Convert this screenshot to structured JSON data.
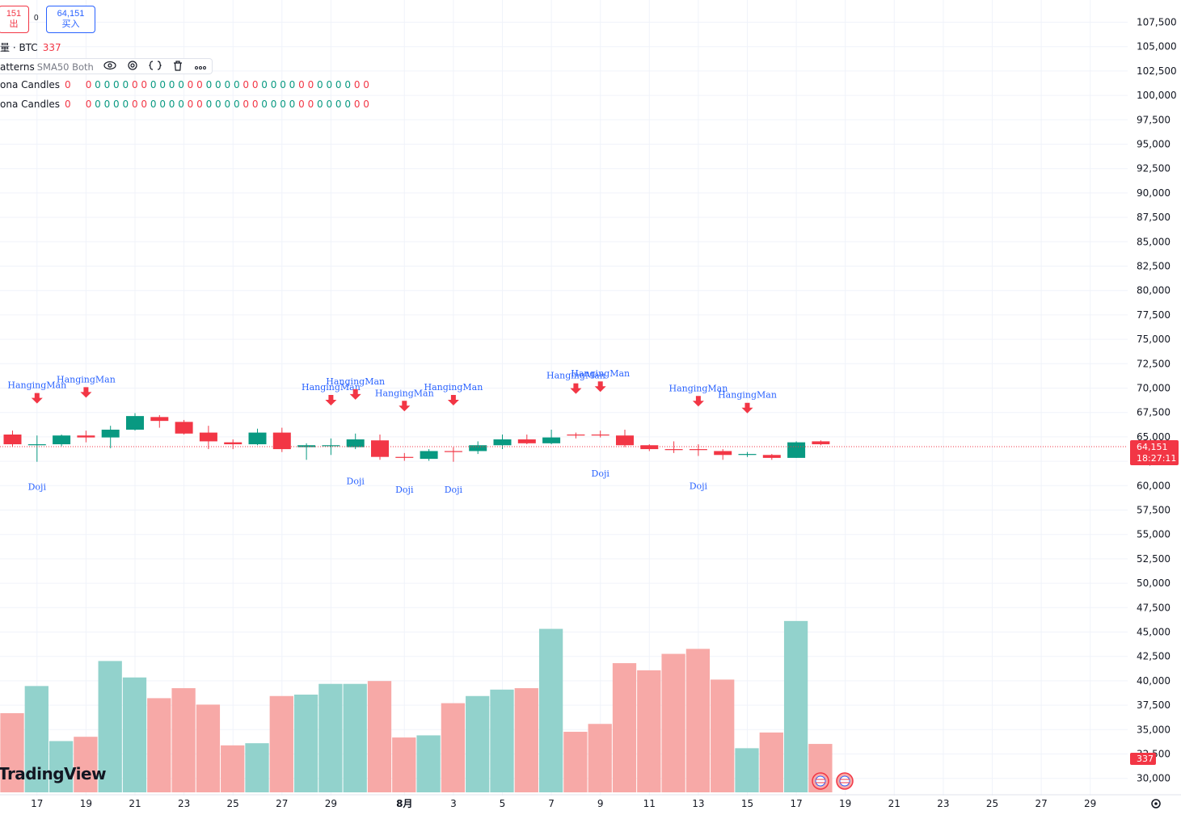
{
  "header": {
    "sell_price": "151",
    "sell_label": "出",
    "spread": "0",
    "buy_price": "64,151",
    "buy_label": "买入"
  },
  "volume_row": {
    "label": "量 · BTC",
    "value": "337"
  },
  "indicator_row": {
    "name": "atterns",
    "args": "SMA50 Both"
  },
  "count_rows": [
    {
      "label": "ona Candles",
      "count": "0"
    },
    {
      "label": "ona Candles",
      "count": "0"
    }
  ],
  "zero_series": "0 0 0 0 0 0 0 0 0 0 0 0 0 0 0 0 0 0 0 0 0 0 0 0 0 0 0 0 0 0 0",
  "logo": "TradingView",
  "price_tag": {
    "price": "64,151",
    "countdown": "18:27:11"
  },
  "volume_tag": "337",
  "colors": {
    "up": "#089981",
    "down": "#f23645",
    "vol_up": "#92d2cc",
    "vol_down": "#f7a9a7",
    "label_blue": "#2962ff"
  },
  "chart_data": {
    "type": "candlestick",
    "price_axis_ticks": [
      "107,500",
      "105,000",
      "102,500",
      "100,000",
      "97,500",
      "95,000",
      "92,500",
      "90,000",
      "87,500",
      "85,000",
      "82,500",
      "80,000",
      "77,500",
      "75,000",
      "72,500",
      "70,000",
      "67,500",
      "65,000",
      "62,500",
      "60,000",
      "57,500",
      "55,000",
      "52,500",
      "50,000",
      "47,500",
      "45,000",
      "42,500",
      "40,000",
      "37,500",
      "35,000",
      "32,500",
      "30,000"
    ],
    "time_axis_ticks": [
      {
        "label": "17",
        "i": 1
      },
      {
        "label": "19",
        "i": 3
      },
      {
        "label": "21",
        "i": 5
      },
      {
        "label": "23",
        "i": 7
      },
      {
        "label": "25",
        "i": 9
      },
      {
        "label": "27",
        "i": 11
      },
      {
        "label": "29",
        "i": 13
      },
      {
        "label": "8月",
        "i": 16
      },
      {
        "label": "3",
        "i": 18
      },
      {
        "label": "5",
        "i": 20
      },
      {
        "label": "7",
        "i": 22
      },
      {
        "label": "9",
        "i": 24
      },
      {
        "label": "11",
        "i": 26
      },
      {
        "label": "13",
        "i": 28
      },
      {
        "label": "15",
        "i": 30
      },
      {
        "label": "17",
        "i": 32
      },
      {
        "label": "19",
        "i": 34
      },
      {
        "label": "21",
        "i": 36
      },
      {
        "label": "23",
        "i": 38
      },
      {
        "label": "25",
        "i": 40
      },
      {
        "label": "27",
        "i": 42
      },
      {
        "label": "29",
        "i": 44
      }
    ],
    "candles": [
      {
        "o": 65100,
        "h": 65500,
        "l": 63900,
        "c": 64100,
        "v": 36500
      },
      {
        "o": 64000,
        "h": 65000,
        "l": 62300,
        "c": 64100,
        "v": 40300
      },
      {
        "o": 64100,
        "h": 65100,
        "l": 63900,
        "c": 65000,
        "v": 32600
      },
      {
        "o": 65000,
        "h": 65500,
        "l": 64300,
        "c": 64800,
        "v": 33200
      },
      {
        "o": 64800,
        "h": 66000,
        "l": 63700,
        "c": 65600,
        "v": 43800
      },
      {
        "o": 65600,
        "h": 67300,
        "l": 65500,
        "c": 67000,
        "v": 41500
      },
      {
        "o": 66900,
        "h": 67100,
        "l": 65800,
        "c": 66500,
        "v": 38600
      },
      {
        "o": 66400,
        "h": 66600,
        "l": 65100,
        "c": 65200,
        "v": 40000
      },
      {
        "o": 65300,
        "h": 66000,
        "l": 63600,
        "c": 64400,
        "v": 37700
      },
      {
        "o": 64300,
        "h": 64600,
        "l": 63600,
        "c": 64100,
        "v": 32000
      },
      {
        "o": 64100,
        "h": 65700,
        "l": 64000,
        "c": 65300,
        "v": 32300
      },
      {
        "o": 65300,
        "h": 65800,
        "l": 63300,
        "c": 63600,
        "v": 38900
      },
      {
        "o": 63800,
        "h": 64200,
        "l": 62500,
        "c": 64000,
        "v": 39100
      },
      {
        "o": 63900,
        "h": 64700,
        "l": 63000,
        "c": 64000,
        "v": 40600
      },
      {
        "o": 63800,
        "h": 65200,
        "l": 63600,
        "c": 64600,
        "v": 40600
      },
      {
        "o": 64500,
        "h": 65100,
        "l": 62500,
        "c": 62800,
        "v": 41000
      },
      {
        "o": 62800,
        "h": 63200,
        "l": 62400,
        "c": 62700,
        "v": 33100
      },
      {
        "o": 62600,
        "h": 63600,
        "l": 62400,
        "c": 63400,
        "v": 33400
      },
      {
        "o": 63400,
        "h": 63800,
        "l": 62300,
        "c": 63300,
        "v": 37900
      },
      {
        "o": 63400,
        "h": 64400,
        "l": 63100,
        "c": 64000,
        "v": 38900
      },
      {
        "o": 64000,
        "h": 65100,
        "l": 63600,
        "c": 64600,
        "v": 39800
      },
      {
        "o": 64600,
        "h": 65100,
        "l": 64100,
        "c": 64200,
        "v": 40000
      },
      {
        "o": 64200,
        "h": 65600,
        "l": 64100,
        "c": 64800,
        "v": 48300
      },
      {
        "o": 65100,
        "h": 65300,
        "l": 64700,
        "c": 65000,
        "v": 33900
      },
      {
        "o": 65100,
        "h": 65500,
        "l": 64800,
        "c": 65000,
        "v": 35000
      },
      {
        "o": 65000,
        "h": 65600,
        "l": 63800,
        "c": 64000,
        "v": 43500
      },
      {
        "o": 64000,
        "h": 64100,
        "l": 63400,
        "c": 63600,
        "v": 42500
      },
      {
        "o": 63600,
        "h": 64400,
        "l": 63200,
        "c": 63500,
        "v": 44800
      },
      {
        "o": 63600,
        "h": 64100,
        "l": 62900,
        "c": 63500,
        "v": 45500
      },
      {
        "o": 63400,
        "h": 63600,
        "l": 62500,
        "c": 63000,
        "v": 41200
      },
      {
        "o": 63000,
        "h": 63300,
        "l": 62800,
        "c": 63100,
        "v": 31600
      },
      {
        "o": 63000,
        "h": 63100,
        "l": 62500,
        "c": 62700,
        "v": 33800
      },
      {
        "o": 62700,
        "h": 64400,
        "l": 62700,
        "c": 64300,
        "v": 49400
      },
      {
        "o": 64400,
        "h": 64500,
        "l": 64000,
        "c": 64100,
        "v": 32200
      }
    ],
    "patterns": [
      {
        "i": 1,
        "type": "HangingMan",
        "yv": 68700
      },
      {
        "i": 3,
        "type": "HangingMan",
        "yv": 69300
      },
      {
        "i": 13,
        "type": "HangingMan",
        "yv": 68500
      },
      {
        "i": 14,
        "type": "HangingMan",
        "yv": 69100
      },
      {
        "i": 16,
        "type": "HangingMan",
        "yv": 67900
      },
      {
        "i": 18,
        "type": "HangingMan",
        "yv": 68500
      },
      {
        "i": 23,
        "type": "HangingMan",
        "yv": 69700
      },
      {
        "i": 24,
        "type": "HangingMan",
        "yv": 69900
      },
      {
        "i": 28,
        "type": "HangingMan",
        "yv": 68400
      },
      {
        "i": 30,
        "type": "HangingMan",
        "yv": 67700
      }
    ],
    "dojis": [
      {
        "i": 1,
        "yv": 59400
      },
      {
        "i": 14,
        "yv": 60000
      },
      {
        "i": 16,
        "yv": 59100
      },
      {
        "i": 18,
        "yv": 59100
      },
      {
        "i": 24,
        "yv": 60800
      },
      {
        "i": 28,
        "yv": 59500
      }
    ]
  }
}
